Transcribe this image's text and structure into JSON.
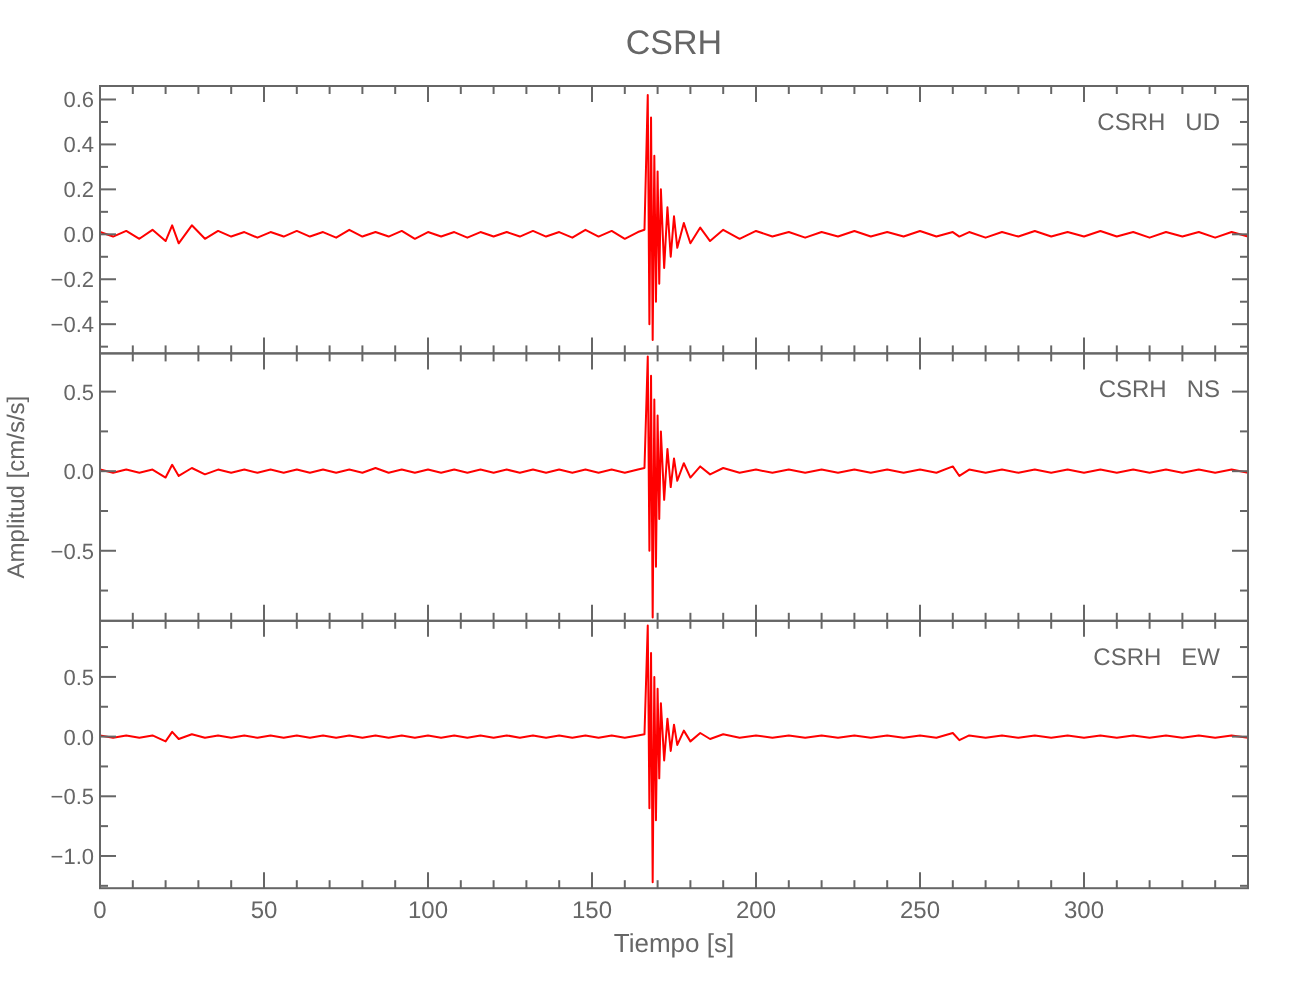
{
  "chart_data": [
    {
      "type": "line",
      "title": "CSRH",
      "annotations": [
        "CSRH   UD"
      ],
      "tick_labels": "y",
      "grid": false,
      "x": [
        0,
        4,
        8,
        12,
        16,
        20,
        22,
        24,
        28,
        32,
        36,
        40,
        44,
        48,
        52,
        56,
        60,
        64,
        68,
        72,
        76,
        80,
        84,
        88,
        92,
        96,
        100,
        104,
        108,
        112,
        116,
        120,
        124,
        128,
        132,
        136,
        140,
        144,
        148,
        152,
        156,
        160,
        164,
        166,
        167,
        167.5,
        168,
        168.5,
        169,
        169.5,
        170,
        170.5,
        171,
        172,
        173,
        174,
        175,
        176,
        178,
        180,
        183,
        186,
        190,
        195,
        200,
        205,
        210,
        215,
        220,
        225,
        230,
        235,
        240,
        245,
        250,
        255,
        260,
        262,
        265,
        270,
        275,
        280,
        285,
        290,
        295,
        300,
        305,
        310,
        315,
        320,
        325,
        330,
        335,
        340,
        345,
        350
      ],
      "xlim": [
        0,
        350
      ],
      "xticks": [
        0,
        {
          "value": 10,
          "label": null
        },
        {
          "value": 20,
          "label": null
        },
        {
          "value": 30,
          "label": null
        },
        {
          "value": 40,
          "label": null
        },
        50,
        {
          "value": 60,
          "label": null
        },
        {
          "value": 70,
          "label": null
        },
        {
          "value": 80,
          "label": null
        },
        {
          "value": 90,
          "label": null
        },
        100,
        {
          "value": 110,
          "label": null
        },
        {
          "value": 120,
          "label": null
        },
        {
          "value": 130,
          "label": null
        },
        {
          "value": 140,
          "label": null
        },
        150,
        {
          "value": 160,
          "label": null
        },
        {
          "value": 170,
          "label": null
        },
        {
          "value": 180,
          "label": null
        },
        {
          "value": 190,
          "label": null
        },
        200,
        {
          "value": 210,
          "label": null
        },
        {
          "value": 220,
          "label": null
        },
        {
          "value": 230,
          "label": null
        },
        {
          "value": 240,
          "label": null
        },
        250,
        {
          "value": 260,
          "label": null
        },
        {
          "value": 270,
          "label": null
        },
        {
          "value": 280,
          "label": null
        },
        {
          "value": 290,
          "label": null
        },
        300,
        {
          "value": 310,
          "label": null
        },
        {
          "value": 320,
          "label": null
        },
        {
          "value": 330,
          "label": null
        },
        {
          "value": 340,
          "label": null
        }
      ],
      "ylim": [
        -0.53,
        0.66
      ],
      "yticks": [
        {
          "value": -0.5,
          "label": null
        },
        {
          "value": -0.4,
          "label": "−0.4"
        },
        {
          "value": -0.3,
          "label": null
        },
        {
          "value": -0.2,
          "label": "−0.2"
        },
        {
          "value": -0.1,
          "label": null
        },
        {
          "value": 0,
          "label": "0.0"
        },
        {
          "value": 0.1,
          "label": null
        },
        {
          "value": 0.2,
          "label": "0.2"
        },
        {
          "value": 0.3,
          "label": null
        },
        {
          "value": 0.4,
          "label": "0.4"
        },
        {
          "value": 0.5,
          "label": null
        },
        {
          "value": 0.6,
          "label": "0.6"
        }
      ],
      "series": [
        {
          "color": "#ff0000",
          "values": [
            0.01,
            -0.01,
            0.015,
            -0.02,
            0.02,
            -0.03,
            0.04,
            -0.04,
            0.04,
            -0.02,
            0.015,
            -0.01,
            0.01,
            -0.015,
            0.01,
            -0.01,
            0.015,
            -0.01,
            0.01,
            -0.015,
            0.02,
            -0.01,
            0.01,
            -0.01,
            0.015,
            -0.02,
            0.01,
            -0.01,
            0.01,
            -0.015,
            0.01,
            -0.01,
            0.01,
            -0.01,
            0.015,
            -0.01,
            0.01,
            -0.015,
            0.02,
            -0.01,
            0.015,
            -0.02,
            0.01,
            0.02,
            0.62,
            -0.4,
            0.52,
            -0.47,
            0.35,
            -0.3,
            0.28,
            -0.22,
            0.2,
            -0.15,
            0.12,
            -0.1,
            0.08,
            -0.06,
            0.05,
            -0.04,
            0.03,
            -0.03,
            0.02,
            -0.02,
            0.015,
            -0.01,
            0.01,
            -0.015,
            0.01,
            -0.01,
            0.015,
            -0.01,
            0.01,
            -0.01,
            0.015,
            -0.01,
            0.01,
            -0.01,
            0.01,
            -0.015,
            0.01,
            -0.01,
            0.015,
            -0.01,
            0.01,
            -0.01,
            0.015,
            -0.01,
            0.01,
            -0.015,
            0.01,
            -0.01,
            0.01,
            -0.015,
            0.01,
            -0.01
          ]
        }
      ]
    },
    {
      "type": "line",
      "ylabel": "Amplitud [cm/s/s]",
      "annotations": [
        "CSRH   NS"
      ],
      "tick_labels": "y",
      "grid": false,
      "x": [
        0,
        4,
        8,
        12,
        16,
        20,
        22,
        24,
        28,
        32,
        36,
        40,
        44,
        48,
        52,
        56,
        60,
        64,
        68,
        72,
        76,
        80,
        84,
        88,
        92,
        96,
        100,
        104,
        108,
        112,
        116,
        120,
        124,
        128,
        132,
        136,
        140,
        144,
        148,
        152,
        156,
        160,
        164,
        166,
        167,
        167.5,
        168,
        168.5,
        169,
        169.5,
        170,
        170.5,
        171,
        172,
        173,
        174,
        175,
        176,
        178,
        180,
        183,
        186,
        190,
        195,
        200,
        205,
        210,
        215,
        220,
        225,
        230,
        235,
        240,
        245,
        250,
        255,
        260,
        262,
        265,
        270,
        275,
        280,
        285,
        290,
        295,
        300,
        305,
        310,
        315,
        320,
        325,
        330,
        335,
        340,
        345,
        350
      ],
      "xlim": [
        0,
        350
      ],
      "xticks": [
        0,
        {
          "value": 10,
          "label": null
        },
        {
          "value": 20,
          "label": null
        },
        {
          "value": 30,
          "label": null
        },
        {
          "value": 40,
          "label": null
        },
        50,
        {
          "value": 60,
          "label": null
        },
        {
          "value": 70,
          "label": null
        },
        {
          "value": 80,
          "label": null
        },
        {
          "value": 90,
          "label": null
        },
        100,
        {
          "value": 110,
          "label": null
        },
        {
          "value": 120,
          "label": null
        },
        {
          "value": 130,
          "label": null
        },
        {
          "value": 140,
          "label": null
        },
        150,
        {
          "value": 160,
          "label": null
        },
        {
          "value": 170,
          "label": null
        },
        {
          "value": 180,
          "label": null
        },
        {
          "value": 190,
          "label": null
        },
        200,
        {
          "value": 210,
          "label": null
        },
        {
          "value": 220,
          "label": null
        },
        {
          "value": 230,
          "label": null
        },
        {
          "value": 240,
          "label": null
        },
        250,
        {
          "value": 260,
          "label": null
        },
        {
          "value": 270,
          "label": null
        },
        {
          "value": 280,
          "label": null
        },
        {
          "value": 290,
          "label": null
        },
        300,
        {
          "value": 310,
          "label": null
        },
        {
          "value": 320,
          "label": null
        },
        {
          "value": 330,
          "label": null
        },
        {
          "value": 340,
          "label": null
        }
      ],
      "ylim": [
        -0.94,
        0.74
      ],
      "yticks": [
        {
          "value": -0.75,
          "label": null
        },
        {
          "value": -0.5,
          "label": "−0.5"
        },
        {
          "value": -0.25,
          "label": null
        },
        {
          "value": 0,
          "label": "0.0"
        },
        {
          "value": 0.25,
          "label": null
        },
        {
          "value": 0.5,
          "label": "0.5"
        }
      ],
      "series": [
        {
          "color": "#ff0000",
          "values": [
            0.01,
            -0.01,
            0.01,
            -0.01,
            0.01,
            -0.04,
            0.04,
            -0.03,
            0.02,
            -0.02,
            0.01,
            -0.01,
            0.01,
            -0.01,
            0.01,
            -0.01,
            0.01,
            -0.01,
            0.01,
            -0.01,
            0.01,
            -0.01,
            0.02,
            -0.01,
            0.01,
            -0.01,
            0.01,
            -0.01,
            0.01,
            -0.01,
            0.01,
            -0.01,
            0.01,
            -0.01,
            0.01,
            -0.01,
            0.01,
            -0.01,
            0.01,
            -0.01,
            0.01,
            -0.01,
            0.01,
            0.02,
            0.72,
            -0.5,
            0.6,
            -0.92,
            0.45,
            -0.6,
            0.35,
            -0.3,
            0.25,
            -0.18,
            0.14,
            -0.1,
            0.08,
            -0.06,
            0.05,
            -0.04,
            0.03,
            -0.02,
            0.02,
            -0.01,
            0.01,
            -0.01,
            0.01,
            -0.01,
            0.01,
            -0.01,
            0.01,
            -0.01,
            0.01,
            -0.01,
            0.01,
            -0.01,
            0.03,
            -0.03,
            0.01,
            -0.01,
            0.01,
            -0.01,
            0.01,
            -0.01,
            0.01,
            -0.01,
            0.01,
            -0.01,
            0.01,
            -0.01,
            0.01,
            -0.01,
            0.01,
            -0.01,
            0.01,
            -0.01
          ]
        }
      ]
    },
    {
      "type": "line",
      "xlabel": "Tiempo [s]",
      "annotations": [
        "CSRH   EW"
      ],
      "grid": false,
      "x": [
        0,
        4,
        8,
        12,
        16,
        20,
        22,
        24,
        28,
        32,
        36,
        40,
        44,
        48,
        52,
        56,
        60,
        64,
        68,
        72,
        76,
        80,
        84,
        88,
        92,
        96,
        100,
        104,
        108,
        112,
        116,
        120,
        124,
        128,
        132,
        136,
        140,
        144,
        148,
        152,
        156,
        160,
        164,
        166,
        167,
        167.5,
        168,
        168.5,
        169,
        169.5,
        170,
        170.5,
        171,
        172,
        173,
        174,
        175,
        176,
        178,
        180,
        183,
        186,
        190,
        195,
        200,
        205,
        210,
        215,
        220,
        225,
        230,
        235,
        240,
        245,
        250,
        255,
        260,
        262,
        265,
        270,
        275,
        280,
        285,
        290,
        295,
        300,
        305,
        310,
        315,
        320,
        325,
        330,
        335,
        340,
        345,
        350
      ],
      "xlim": [
        0,
        350
      ],
      "xticks": [
        0,
        {
          "value": 10,
          "label": null
        },
        {
          "value": 20,
          "label": null
        },
        {
          "value": 30,
          "label": null
        },
        {
          "value": 40,
          "label": null
        },
        50,
        {
          "value": 60,
          "label": null
        },
        {
          "value": 70,
          "label": null
        },
        {
          "value": 80,
          "label": null
        },
        {
          "value": 90,
          "label": null
        },
        100,
        {
          "value": 110,
          "label": null
        },
        {
          "value": 120,
          "label": null
        },
        {
          "value": 130,
          "label": null
        },
        {
          "value": 140,
          "label": null
        },
        150,
        {
          "value": 160,
          "label": null
        },
        {
          "value": 170,
          "label": null
        },
        {
          "value": 180,
          "label": null
        },
        {
          "value": 190,
          "label": null
        },
        200,
        {
          "value": 210,
          "label": null
        },
        {
          "value": 220,
          "label": null
        },
        {
          "value": 230,
          "label": null
        },
        {
          "value": 240,
          "label": null
        },
        250,
        {
          "value": 260,
          "label": null
        },
        {
          "value": 270,
          "label": null
        },
        {
          "value": 280,
          "label": null
        },
        {
          "value": 290,
          "label": null
        },
        300,
        {
          "value": 310,
          "label": null
        },
        {
          "value": 320,
          "label": null
        },
        {
          "value": 330,
          "label": null
        },
        {
          "value": 340,
          "label": null
        }
      ],
      "ylim": [
        -1.27,
        0.97
      ],
      "yticks": [
        {
          "value": -1.25,
          "label": null
        },
        {
          "value": -1,
          "label": "−1.0"
        },
        {
          "value": -0.75,
          "label": null
        },
        {
          "value": -0.5,
          "label": "−0.5"
        },
        {
          "value": -0.25,
          "label": null
        },
        {
          "value": 0,
          "label": "0.0"
        },
        {
          "value": 0.25,
          "label": null
        },
        {
          "value": 0.5,
          "label": "0.5"
        },
        {
          "value": 0.75,
          "label": null
        }
      ],
      "series": [
        {
          "color": "#ff0000",
          "values": [
            0.01,
            -0.01,
            0.01,
            -0.01,
            0.01,
            -0.04,
            0.04,
            -0.02,
            0.02,
            -0.01,
            0.01,
            -0.01,
            0.01,
            -0.01,
            0.01,
            -0.01,
            0.01,
            -0.01,
            0.01,
            -0.01,
            0.01,
            -0.01,
            0.01,
            -0.01,
            0.01,
            -0.01,
            0.01,
            -0.01,
            0.01,
            -0.01,
            0.01,
            -0.01,
            0.01,
            -0.01,
            0.01,
            -0.01,
            0.01,
            -0.01,
            0.01,
            -0.01,
            0.01,
            -0.01,
            0.01,
            0.02,
            0.93,
            -0.6,
            0.7,
            -1.22,
            0.5,
            -0.7,
            0.4,
            -0.35,
            0.28,
            -0.2,
            0.15,
            -0.12,
            0.1,
            -0.07,
            0.05,
            -0.04,
            0.03,
            -0.02,
            0.02,
            -0.01,
            0.01,
            -0.01,
            0.01,
            -0.01,
            0.01,
            -0.01,
            0.01,
            -0.01,
            0.01,
            -0.01,
            0.01,
            -0.01,
            0.03,
            -0.03,
            0.01,
            -0.01,
            0.01,
            -0.01,
            0.01,
            -0.01,
            0.01,
            -0.01,
            0.01,
            -0.01,
            0.01,
            -0.01,
            0.01,
            -0.01,
            0.01,
            -0.01,
            0.01,
            -0.01
          ]
        }
      ]
    }
  ]
}
